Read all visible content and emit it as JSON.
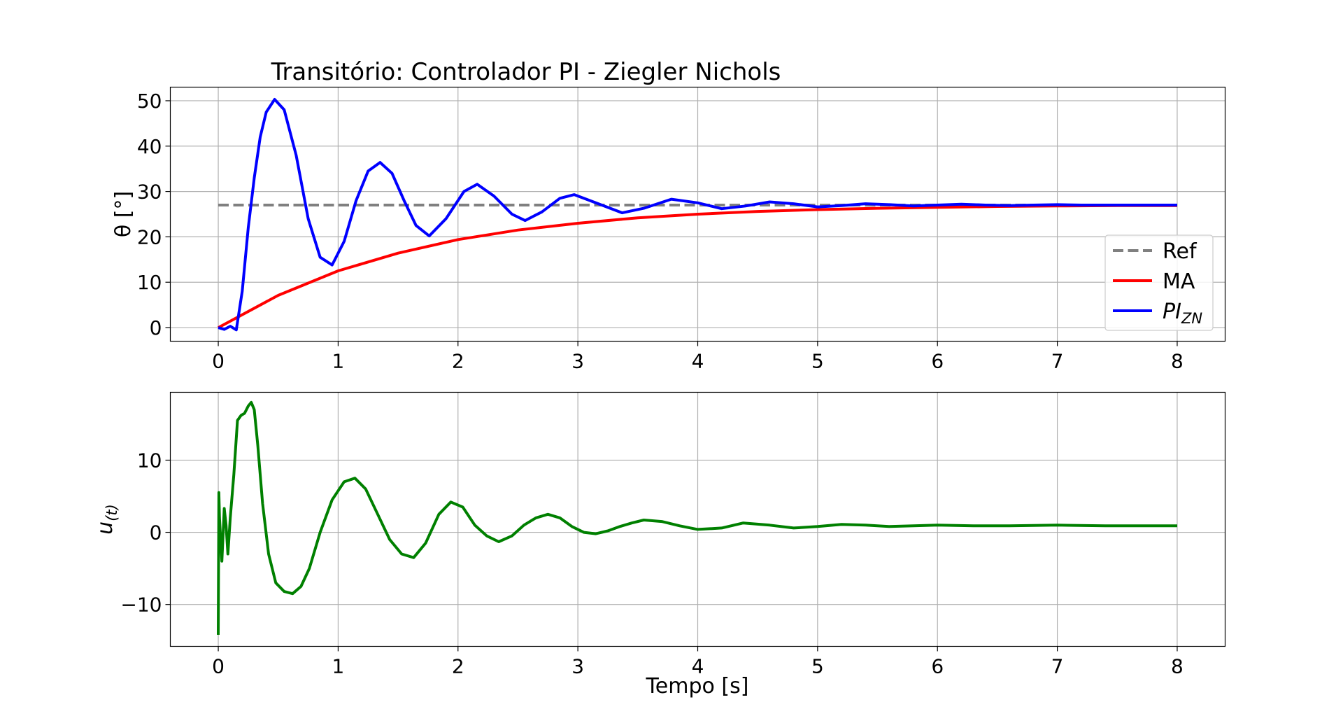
{
  "figure": {
    "title": "Transitório: Controlador PI - Ziegler Nichols"
  },
  "chart_data": [
    {
      "type": "line",
      "title": "Transitório: Controlador PI - Ziegler Nichols",
      "xlabel": "",
      "ylabel": "θ [°]",
      "xlim": [
        -0.4,
        8.4
      ],
      "ylim": [
        -3,
        53
      ],
      "xticks": [
        0,
        1,
        2,
        3,
        4,
        5,
        6,
        7,
        8
      ],
      "yticks": [
        0,
        10,
        20,
        30,
        40,
        50
      ],
      "grid": true,
      "legend_position": "lower-right",
      "series": [
        {
          "name": "Ref",
          "color": "#808080",
          "dash": "dashed",
          "x": [
            0,
            8
          ],
          "y": [
            27,
            27
          ]
        },
        {
          "name": "MA",
          "color": "#ff0000",
          "dash": "solid",
          "x": [
            0,
            0.5,
            1,
            1.5,
            2,
            2.5,
            3,
            3.5,
            4,
            4.5,
            5,
            5.5,
            6,
            6.5,
            7,
            7.5,
            8
          ],
          "y": [
            0,
            7.1,
            12.5,
            16.4,
            19.4,
            21.5,
            23.0,
            24.2,
            25.0,
            25.6,
            26.0,
            26.3,
            26.5,
            26.7,
            26.8,
            26.9,
            26.9
          ]
        },
        {
          "name": "PI",
          "name_sub": "ZN",
          "color": "#0000ff",
          "dash": "solid",
          "x": [
            0,
            0.05,
            0.1,
            0.15,
            0.2,
            0.25,
            0.3,
            0.35,
            0.4,
            0.47,
            0.55,
            0.65,
            0.75,
            0.85,
            0.95,
            1.05,
            1.15,
            1.25,
            1.35,
            1.45,
            1.55,
            1.65,
            1.76,
            1.9,
            2.05,
            2.16,
            2.3,
            2.45,
            2.56,
            2.7,
            2.85,
            2.97,
            3.15,
            3.37,
            3.55,
            3.78,
            4.0,
            4.2,
            4.4,
            4.6,
            4.8,
            5.0,
            5.2,
            5.4,
            5.6,
            5.8,
            6.0,
            6.2,
            6.4,
            6.6,
            6.8,
            7.0,
            7.2,
            7.4,
            7.6,
            7.8,
            8.0
          ],
          "y": [
            0,
            -0.4,
            0.3,
            -0.5,
            8,
            22,
            33,
            42,
            47.5,
            50.3,
            48,
            38,
            24,
            15.5,
            13.8,
            19,
            28,
            34.5,
            36.4,
            34,
            28,
            22.5,
            20.2,
            24,
            30,
            31.6,
            29,
            25,
            23.6,
            25.5,
            28.5,
            29.3,
            27.5,
            25.3,
            26.3,
            28.3,
            27.5,
            26.2,
            26.8,
            27.7,
            27.3,
            26.6,
            26.9,
            27.3,
            27.1,
            26.8,
            27.0,
            27.2,
            27.0,
            26.9,
            27.0,
            27.1,
            27.0,
            27.0,
            27.0,
            27.0,
            27.0
          ]
        }
      ]
    },
    {
      "type": "line",
      "title": "",
      "xlabel": "Tempo [s]",
      "ylabel": "u",
      "ylabel_sub": "(t)",
      "xlim": [
        -0.4,
        8.4
      ],
      "ylim": [
        -15.8,
        19.4
      ],
      "xticks": [
        0,
        1,
        2,
        3,
        4,
        5,
        6,
        7,
        8
      ],
      "yticks": [
        -10,
        0,
        10
      ],
      "ytick_labels": [
        "−10",
        "0",
        "10"
      ],
      "grid": true,
      "series": [
        {
          "color": "#008000",
          "dash": "solid",
          "x": [
            0,
            0.005,
            0.01,
            0.03,
            0.05,
            0.065,
            0.08,
            0.1,
            0.13,
            0.16,
            0.19,
            0.22,
            0.25,
            0.275,
            0.3,
            0.33,
            0.37,
            0.42,
            0.48,
            0.55,
            0.62,
            0.69,
            0.76,
            0.85,
            0.95,
            1.05,
            1.14,
            1.23,
            1.33,
            1.43,
            1.53,
            1.63,
            1.73,
            1.84,
            1.94,
            2.04,
            2.14,
            2.24,
            2.34,
            2.45,
            2.55,
            2.65,
            2.75,
            2.85,
            2.95,
            3.05,
            3.15,
            3.25,
            3.35,
            3.45,
            3.55,
            3.7,
            3.85,
            4.0,
            4.2,
            4.38,
            4.6,
            4.8,
            5.0,
            5.2,
            5.4,
            5.6,
            5.8,
            6.0,
            6.3,
            6.6,
            7.0,
            7.4,
            8.0
          ],
          "y": [
            -14.2,
            5.5,
            2.0,
            -4.0,
            3.3,
            1.0,
            -3.0,
            2.0,
            8.0,
            15.5,
            16.2,
            16.5,
            17.5,
            18.0,
            17.0,
            12.0,
            4.0,
            -3.0,
            -7.0,
            -8.2,
            -8.5,
            -7.5,
            -5.0,
            0.0,
            4.5,
            7.0,
            7.5,
            6.0,
            2.5,
            -1.0,
            -3.0,
            -3.5,
            -1.5,
            2.5,
            4.2,
            3.5,
            1.0,
            -0.5,
            -1.3,
            -0.5,
            1.0,
            2.0,
            2.5,
            2.0,
            0.8,
            0.0,
            -0.2,
            0.2,
            0.8,
            1.3,
            1.7,
            1.5,
            0.9,
            0.4,
            0.6,
            1.3,
            1.0,
            0.6,
            0.8,
            1.1,
            1.0,
            0.8,
            0.9,
            1.0,
            0.9,
            0.9,
            1.0,
            0.9,
            0.9
          ]
        }
      ]
    }
  ]
}
